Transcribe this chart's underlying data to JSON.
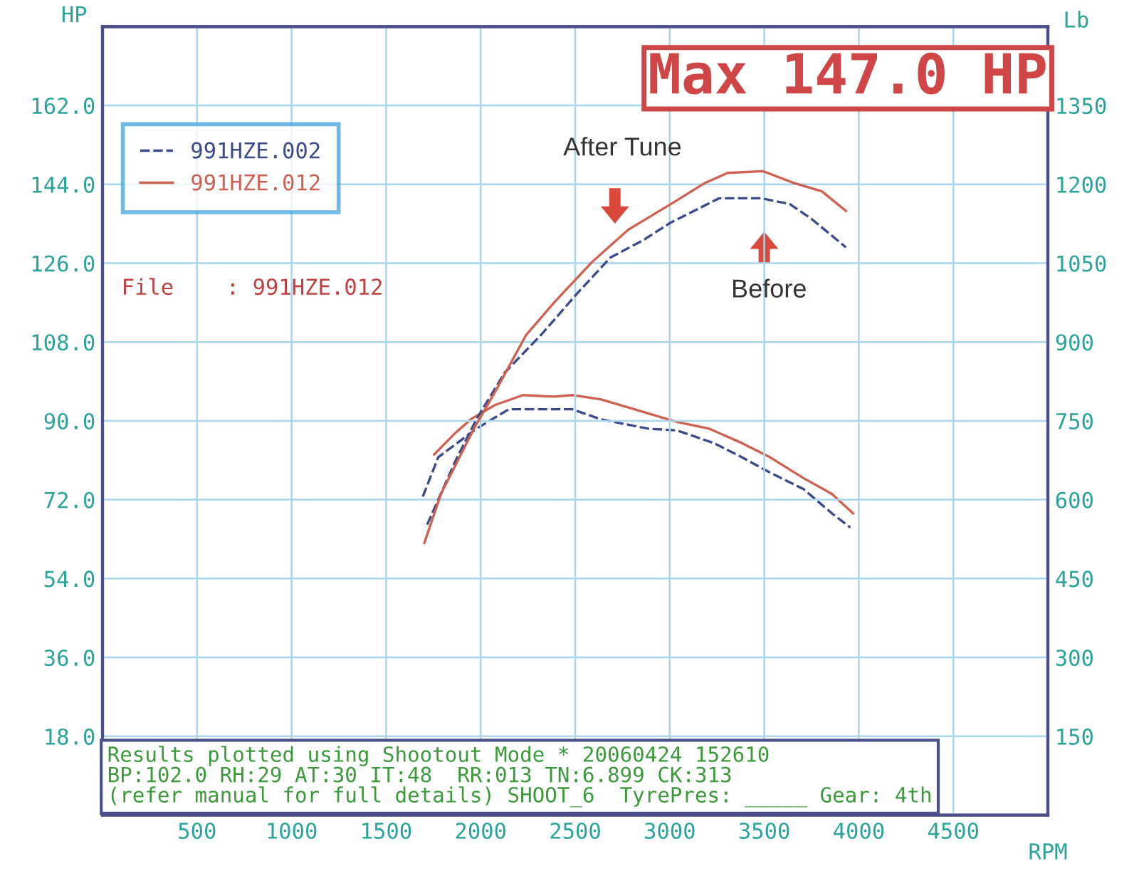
{
  "chart_data": {
    "type": "line",
    "title": "Max 147.0 HP",
    "xlabel": "RPM",
    "ylabel": "HP",
    "y2label": "Lb",
    "xlim": [
      0,
      5000
    ],
    "xticks": [
      500,
      1000,
      1500,
      2000,
      2500,
      3000,
      3500,
      4000,
      4500
    ],
    "ylim": [
      0,
      180
    ],
    "yticks": [
      {
        "value": 18,
        "label": "18.0"
      },
      {
        "value": 36,
        "label": "36.0"
      },
      {
        "value": 54,
        "label": "54.0"
      },
      {
        "value": 72,
        "label": "72.0"
      },
      {
        "value": 90,
        "label": "90.0"
      },
      {
        "value": 108,
        "label": "108.0"
      },
      {
        "value": 126,
        "label": "126.0"
      },
      {
        "value": 144,
        "label": "144.0"
      },
      {
        "value": 162,
        "label": "162.0"
      }
    ],
    "y2lim": [
      0,
      1500
    ],
    "y2ticks": [
      150,
      300,
      450,
      600,
      750,
      900,
      1050,
      1200,
      1350
    ],
    "grid": true,
    "legend": "top left",
    "marker": "none",
    "series": [
      {
        "name": "991HZE.002",
        "color": "#3a4a8a",
        "line_style": "dashed",
        "x": [
          1717,
          1866,
          1978,
          2127,
          2321,
          2515,
          2687,
          2858,
          3007,
          3261,
          3485,
          3634,
          3753,
          3932
        ],
        "values": [
          66.3,
          80.8,
          90.4,
          101.0,
          109.7,
          119.3,
          127.3,
          131.2,
          135.3,
          140.8,
          140.8,
          139.5,
          136.0,
          129.6
        ]
      },
      {
        "name": "991HZE.012",
        "color": "#d0604f",
        "line_style": "solid",
        "x": [
          1702,
          1790,
          1887,
          1962,
          2089,
          2239,
          2388,
          2590,
          2783,
          3007,
          3186,
          3306,
          3492,
          3656,
          3805,
          3932
        ],
        "values": [
          62.1,
          73.3,
          81.6,
          88.0,
          97.6,
          109.5,
          117.0,
          126.3,
          133.7,
          139.5,
          144.3,
          146.6,
          147.0,
          144.3,
          142.4,
          137.9
        ]
      },
      {
        "color": "#3a4a8a",
        "line_style": "dashed",
        "axis": "y2",
        "x": [
          1694,
          1776,
          1978,
          2023,
          2149,
          2373,
          2485,
          2634,
          2888,
          3037,
          3231,
          3380,
          3529,
          3708,
          3858,
          3955
        ],
        "values": [
          606,
          681,
          735,
          745,
          772,
          772,
          772,
          753,
          735,
          732,
          708,
          681,
          652,
          620,
          574,
          547
        ]
      },
      {
        "color": "#d0604f",
        "line_style": "solid",
        "axis": "y2",
        "x": [
          1754,
          1866,
          1948,
          2075,
          2224,
          2388,
          2485,
          2634,
          2813,
          3037,
          3209,
          3380,
          3529,
          3708,
          3858,
          3970
        ],
        "values": [
          686,
          727,
          753,
          780,
          799,
          796,
          799,
          791,
          772,
          748,
          735,
          708,
          681,
          641,
          611,
          574
        ]
      }
    ],
    "annotations": [
      "After Tune",
      "Before",
      "File    : 991HZE.012",
      "Results plotted using Shootout Mode * 20060424 152610",
      "BP:102.0 RH:29 AT:30 IT:48  RR:013 TN:6.899 CK:313",
      "(refer manual for full details) SHOOT_6  TyrePres: _____ Gear: 4th"
    ]
  }
}
